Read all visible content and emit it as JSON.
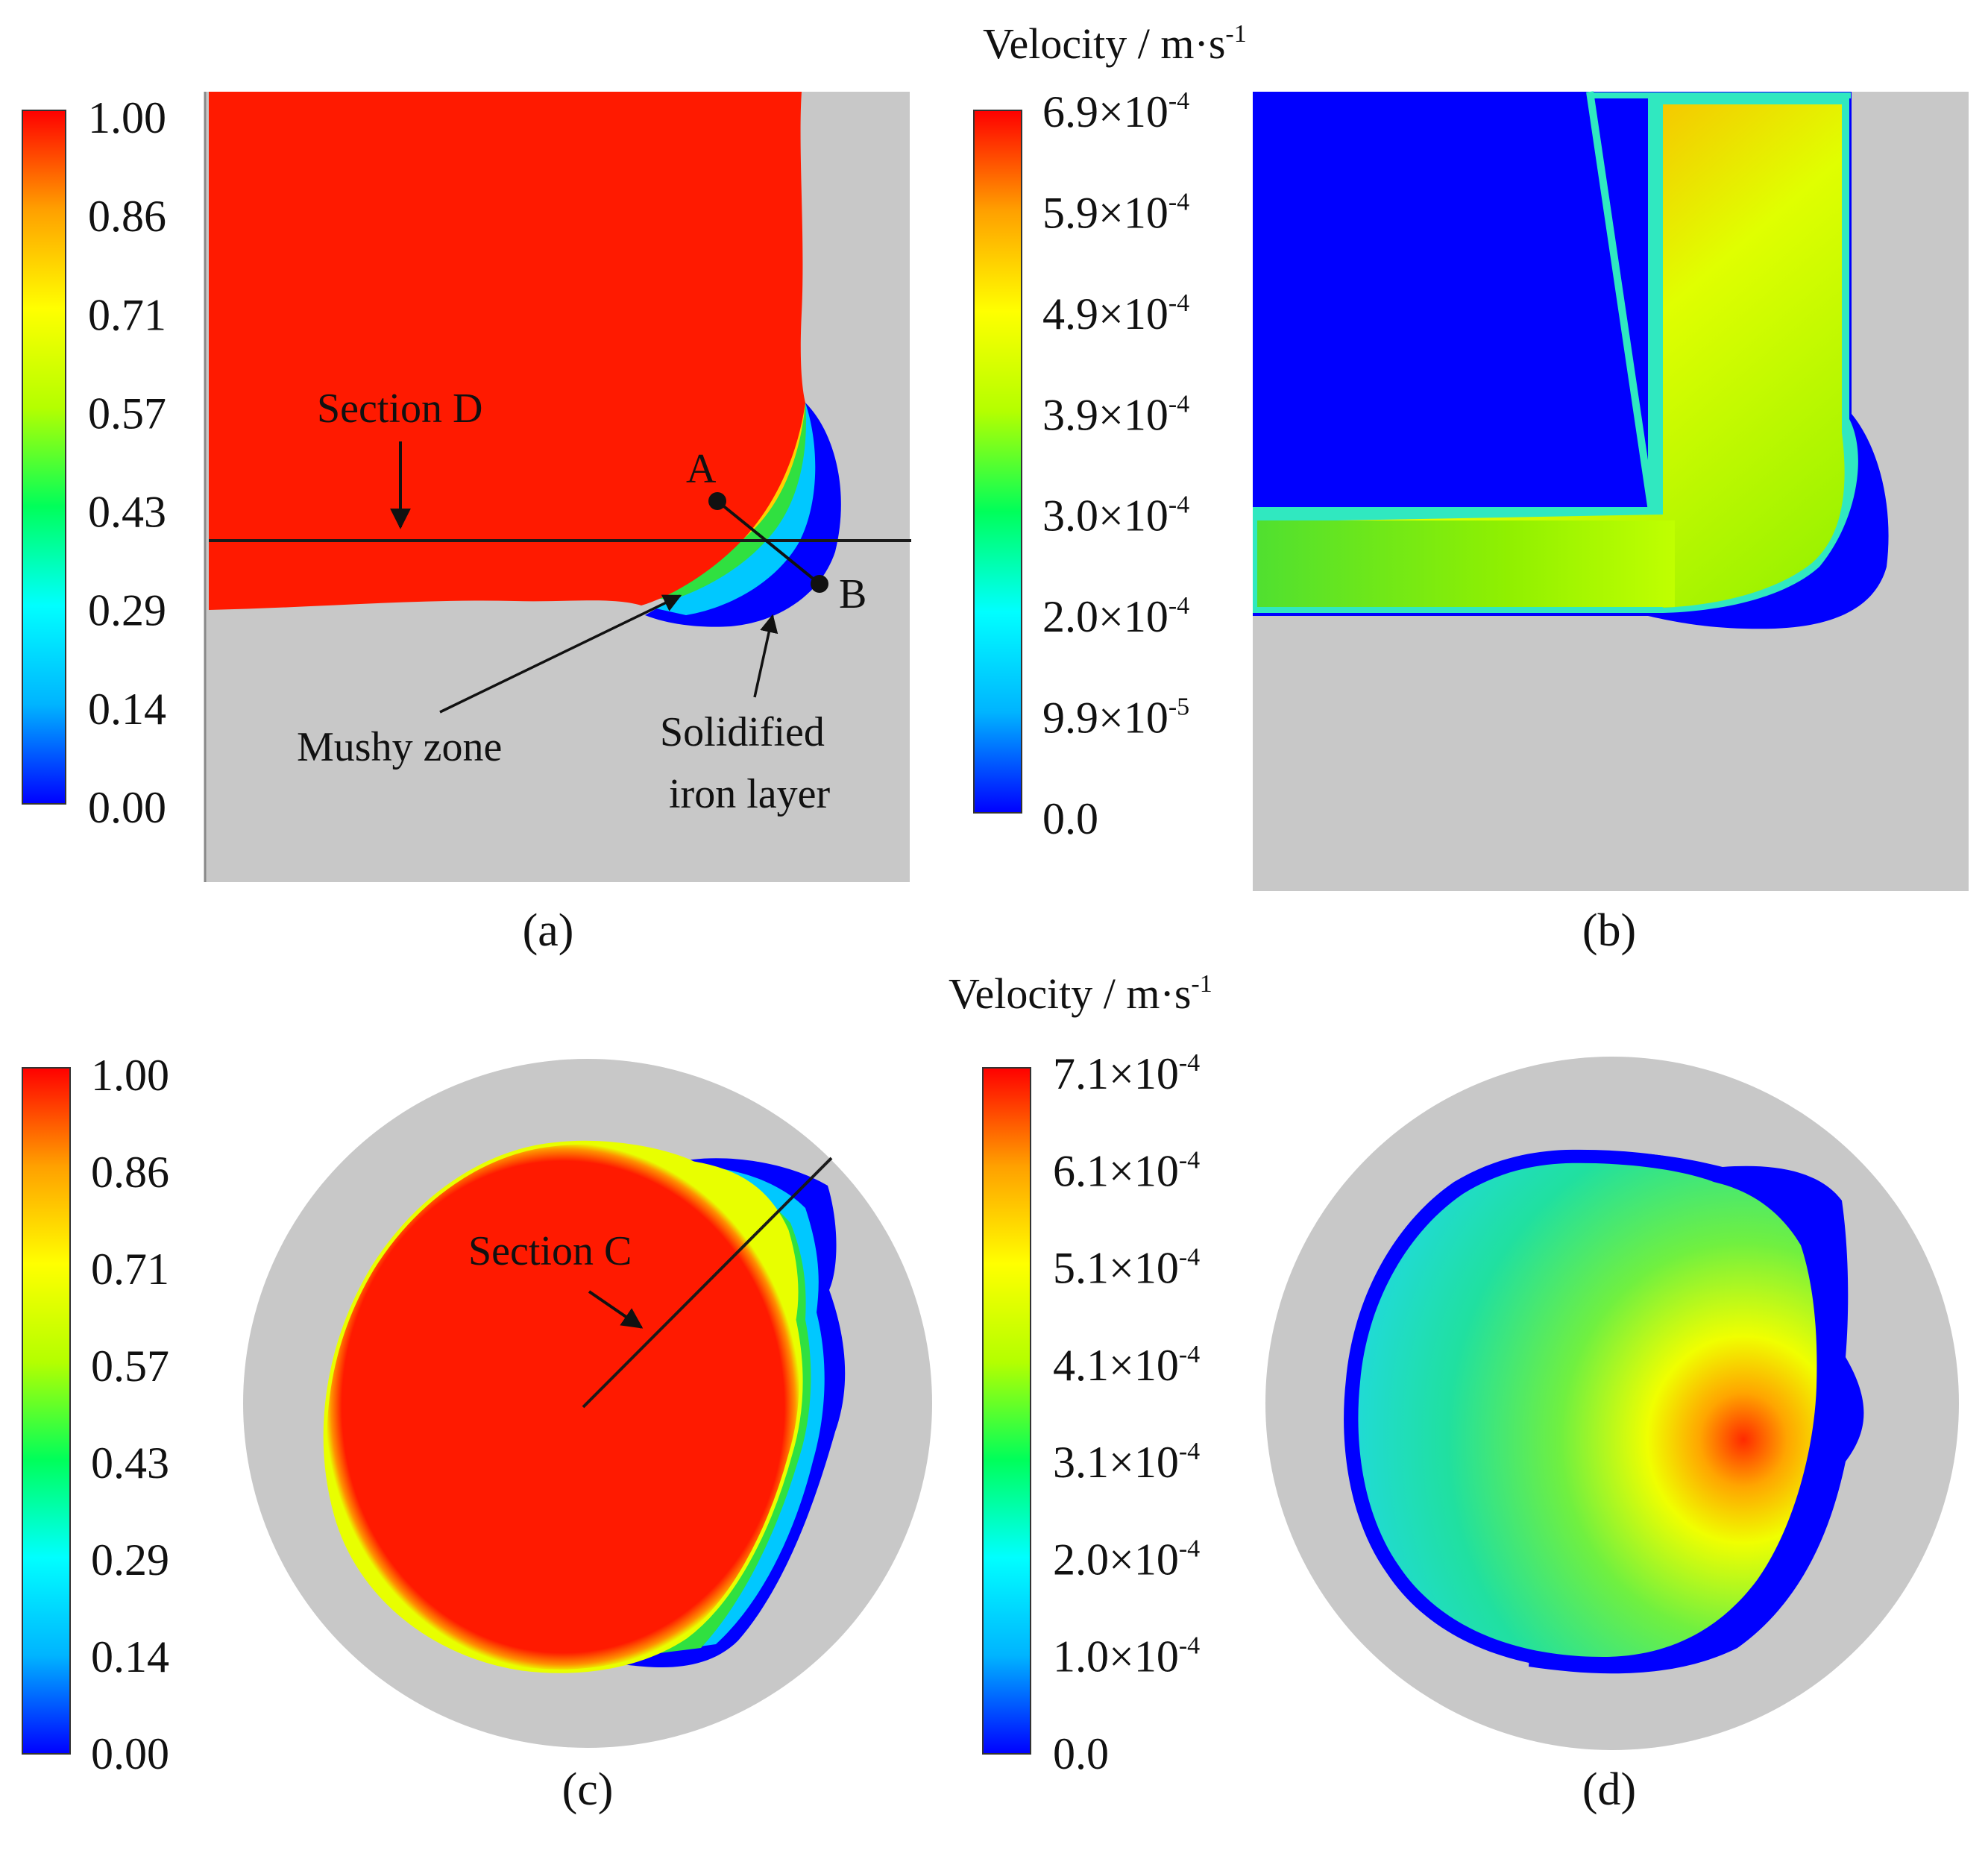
{
  "colors": {
    "background": "#ffffff",
    "gray": "#c8c8c8",
    "red": "#ff1a00",
    "blue": "#0000ff",
    "line": "#1a1a1a"
  },
  "colormap": [
    "#0000ff",
    "#00b4ff",
    "#00ffff",
    "#00ff5a",
    "#b4ff00",
    "#ffff00",
    "#ffa000",
    "#ff0000"
  ],
  "panels": {
    "a": {
      "label": "(a)",
      "colorbar_ticks": [
        "1.00",
        "0.86",
        "0.71",
        "0.57",
        "0.43",
        "0.29",
        "0.14",
        "0.00"
      ],
      "annotations": {
        "section_d": "Section D",
        "point_a": "A",
        "point_b": "B",
        "mushy_zone": "Mushy zone",
        "solidified_line1": "Solidified",
        "solidified_line2": "iron layer"
      }
    },
    "b": {
      "label": "(b)",
      "title_main": "Velocity / m·s",
      "title_exp": "-1",
      "colorbar_ticks": [
        {
          "mantissa": "6.9×10",
          "exp": "-4"
        },
        {
          "mantissa": "5.9×10",
          "exp": "-4"
        },
        {
          "mantissa": "4.9×10",
          "exp": "-4"
        },
        {
          "mantissa": "3.9×10",
          "exp": "-4"
        },
        {
          "mantissa": "3.0×10",
          "exp": "-4"
        },
        {
          "mantissa": "2.0×10",
          "exp": "-4"
        },
        {
          "mantissa": "9.9×10",
          "exp": "-5"
        },
        {
          "mantissa": "0.0",
          "exp": ""
        }
      ]
    },
    "c": {
      "label": "(c)",
      "colorbar_ticks": [
        "1.00",
        "0.86",
        "0.71",
        "0.57",
        "0.43",
        "0.29",
        "0.14",
        "0.00"
      ],
      "annotations": {
        "section_c": "Section C"
      }
    },
    "d": {
      "label": "(d)",
      "title_main": "Velocity / m·s",
      "title_exp": "-1",
      "colorbar_ticks": [
        {
          "mantissa": "7.1×10",
          "exp": "-4"
        },
        {
          "mantissa": "6.1×10",
          "exp": "-4"
        },
        {
          "mantissa": "5.1×10",
          "exp": "-4"
        },
        {
          "mantissa": "4.1×10",
          "exp": "-4"
        },
        {
          "mantissa": "3.1×10",
          "exp": "-4"
        },
        {
          "mantissa": "2.0×10",
          "exp": "-4"
        },
        {
          "mantissa": "1.0×10",
          "exp": "-4"
        },
        {
          "mantissa": "0.0",
          "exp": ""
        }
      ]
    }
  }
}
